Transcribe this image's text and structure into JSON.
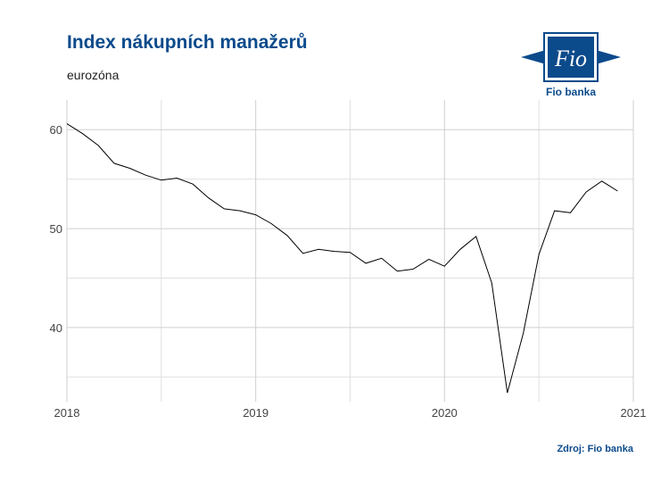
{
  "header": {
    "title": "Index nákupních manažerů",
    "subtitle": "eurozóna"
  },
  "logo": {
    "name": "Fio",
    "caption": "Fio banka",
    "color": "#0b4a8b"
  },
  "footer": {
    "source": "Zdroj: Fio banka"
  },
  "chart_data": {
    "type": "line",
    "title": "Index nákupních manažerů",
    "subtitle": "eurozóna",
    "xlabel": "",
    "ylabel": "",
    "xlim": [
      2018,
      2021
    ],
    "ylim": [
      32.5,
      63
    ],
    "x_ticks": [
      2018,
      2019,
      2020,
      2021
    ],
    "y_ticks": [
      40,
      50,
      60
    ],
    "grid": true,
    "line_color": "#000000",
    "series": [
      {
        "x": [
          2018.0,
          2018.083,
          2018.167,
          2018.25,
          2018.333,
          2018.417,
          2018.5,
          2018.583,
          2018.667,
          2018.75,
          2018.833,
          2018.917,
          2019.0,
          2019.083,
          2019.167,
          2019.25,
          2019.333,
          2019.417,
          2019.5,
          2019.583,
          2019.667,
          2019.75,
          2019.833,
          2019.917,
          2020.0,
          2020.083,
          2020.167,
          2020.25,
          2020.333,
          2020.417,
          2020.5,
          2020.583,
          2020.667,
          2020.75,
          2020.833,
          2020.917
        ],
        "y": [
          60.6,
          59.6,
          58.4,
          56.6,
          56.1,
          55.4,
          54.9,
          55.1,
          54.5,
          53.1,
          52.0,
          51.8,
          51.4,
          50.5,
          49.3,
          47.5,
          47.9,
          47.7,
          47.6,
          46.5,
          47.0,
          45.7,
          45.9,
          46.9,
          46.2,
          47.9,
          49.2,
          44.5,
          33.4,
          39.4,
          47.4,
          51.8,
          51.6,
          53.7,
          54.8,
          53.8
        ]
      }
    ]
  }
}
